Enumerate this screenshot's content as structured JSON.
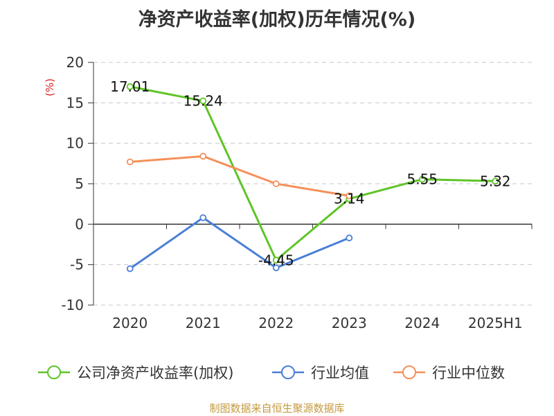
{
  "title": "净资产收益率(加权)历年情况(%)",
  "source": "制图数据来自恒生聚源数据库",
  "chart_data": {
    "type": "line",
    "title": "净资产收益率(加权)历年情况(%)",
    "ylabel": "(%)",
    "xlabel": "",
    "categories": [
      "2020",
      "2021",
      "2022",
      "2023",
      "2024",
      "2025H1"
    ],
    "ylim": [
      -10,
      20
    ],
    "yticks": [
      20,
      15,
      10,
      5,
      0,
      -5,
      -10
    ],
    "grid": true,
    "legend_position": "bottom",
    "series": [
      {
        "name": "公司净资产收益率(加权)",
        "color": "#5fc427",
        "values": [
          17.01,
          15.24,
          -4.45,
          3.14,
          5.55,
          5.32
        ],
        "labels": true
      },
      {
        "name": "行业均值",
        "color": "#4a7fd8",
        "values": [
          -5.5,
          0.8,
          -5.4,
          -1.7,
          null,
          null
        ],
        "labels": false
      },
      {
        "name": "行业中位数",
        "color": "#f5905a",
        "values": [
          7.7,
          8.4,
          5.0,
          3.5,
          null,
          null
        ],
        "labels": false
      }
    ]
  }
}
